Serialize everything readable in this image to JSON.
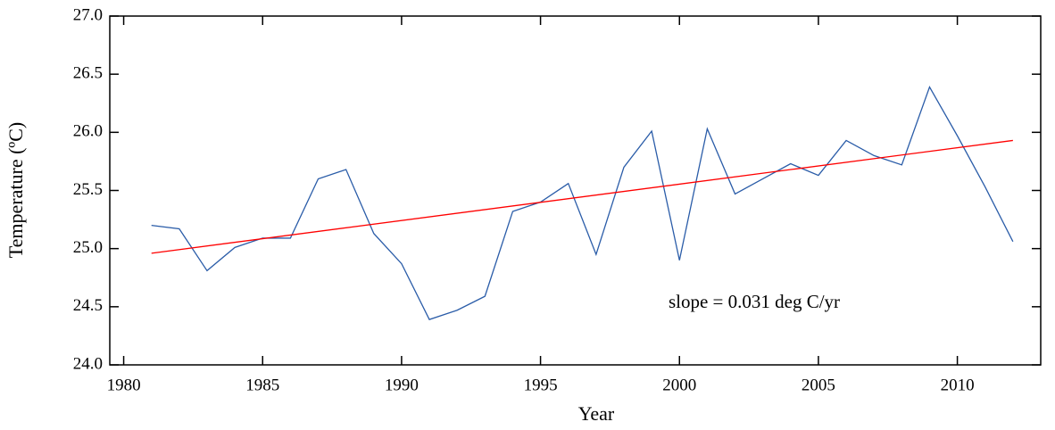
{
  "chart_data": {
    "type": "line",
    "xlabel": "Year",
    "ylabel": "Temperature (ºC)",
    "annotation": "slope = 0.031 deg C/yr",
    "annotation_color": "#ff0000",
    "series": [
      {
        "color": "#2a5ca8",
        "x": [
          1981,
          1982,
          1983,
          1984,
          1985,
          1986,
          1987,
          1988,
          1989,
          1990,
          1991,
          1992,
          1993,
          1994,
          1995,
          1996,
          1997,
          1998,
          1999,
          2000,
          2001,
          2002,
          2003,
          2004,
          2005,
          2006,
          2007,
          2008,
          2009,
          2010,
          2011,
          2012
        ],
        "values": [
          25.2,
          25.17,
          24.81,
          25.01,
          25.09,
          25.09,
          25.6,
          25.68,
          25.13,
          24.87,
          24.39,
          24.47,
          24.59,
          25.32,
          25.4,
          25.56,
          24.95,
          25.7,
          26.01,
          24.9,
          26.03,
          25.47,
          25.6,
          25.73,
          25.63,
          25.93,
          25.8,
          25.72,
          26.39,
          25.97,
          25.53,
          25.06
        ]
      },
      {
        "color": "#ff0000",
        "x": [
          1981,
          2012
        ],
        "values": [
          24.96,
          25.93
        ]
      }
    ],
    "xlim": [
      1979.5,
      2013
    ],
    "xticks": [
      1980,
      1985,
      1990,
      1995,
      2000,
      2005,
      2010
    ],
    "ylim": [
      24.0,
      27.0
    ],
    "yticks": [
      {
        "value": 24.0,
        "label": "24.0"
      },
      {
        "value": 24.5,
        "label": "24.5"
      },
      {
        "value": 25.0,
        "label": "25.0"
      },
      {
        "value": 25.5,
        "label": "25.5"
      },
      {
        "value": 26.0,
        "label": "26.0"
      },
      {
        "value": 26.5,
        "label": "26.5"
      },
      {
        "value": 27.0,
        "label": "27.0"
      }
    ],
    "grid": false
  }
}
